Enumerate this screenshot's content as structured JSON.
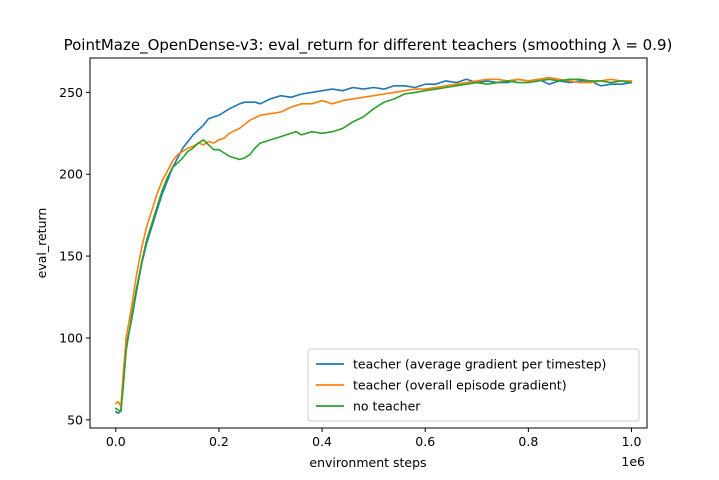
{
  "chart_data": {
    "type": "line",
    "title": "PointMaze_OpenDense-v3: eval_return for different teachers (smoothing λ = 0.9)",
    "xlabel": "environment steps",
    "ylabel": "eval_return",
    "x_multiplier_label": "1e6",
    "xlim": [
      -0.05,
      1.03
    ],
    "ylim": [
      45,
      271
    ],
    "xticks": [
      0.0,
      0.2,
      0.4,
      0.6,
      0.8,
      1.0
    ],
    "xtick_labels": [
      "0.0",
      "0.2",
      "0.4",
      "0.6",
      "0.8",
      "1.0"
    ],
    "yticks": [
      50,
      100,
      150,
      200,
      250
    ],
    "ytick_labels": [
      "50",
      "100",
      "150",
      "200",
      "250"
    ],
    "grid": false,
    "legend_position": "lower-right",
    "series": [
      {
        "name": "teacher (average gradient per timestep)",
        "color": "#1f77b4",
        "x": [
          0.0,
          0.005,
          0.01,
          0.015,
          0.02,
          0.03,
          0.04,
          0.05,
          0.06,
          0.07,
          0.08,
          0.09,
          0.1,
          0.11,
          0.12,
          0.13,
          0.14,
          0.15,
          0.16,
          0.17,
          0.18,
          0.2,
          0.22,
          0.24,
          0.25,
          0.27,
          0.28,
          0.3,
          0.32,
          0.34,
          0.36,
          0.38,
          0.4,
          0.42,
          0.44,
          0.46,
          0.48,
          0.5,
          0.52,
          0.54,
          0.56,
          0.58,
          0.6,
          0.62,
          0.64,
          0.66,
          0.68,
          0.7,
          0.72,
          0.74,
          0.76,
          0.78,
          0.8,
          0.82,
          0.84,
          0.86,
          0.88,
          0.9,
          0.92,
          0.94,
          0.96,
          0.98,
          1.0
        ],
        "y": [
          55,
          54,
          56,
          75,
          95,
          110,
          128,
          145,
          158,
          168,
          178,
          188,
          196,
          204,
          210,
          216,
          220,
          224,
          227,
          230,
          234,
          236,
          240,
          243,
          244,
          244,
          243,
          246,
          248,
          247,
          249,
          250,
          251,
          252,
          251,
          253,
          252,
          253,
          252,
          254,
          254,
          253,
          255,
          255,
          257,
          256,
          258,
          256,
          257,
          256,
          256,
          258,
          257,
          258,
          255,
          257,
          256,
          257,
          257,
          254,
          255,
          255,
          256
        ]
      },
      {
        "name": "teacher (overall episode gradient)",
        "color": "#ff7f0e",
        "x": [
          0.0,
          0.005,
          0.01,
          0.015,
          0.02,
          0.03,
          0.04,
          0.05,
          0.06,
          0.07,
          0.08,
          0.09,
          0.1,
          0.11,
          0.12,
          0.13,
          0.14,
          0.15,
          0.16,
          0.17,
          0.18,
          0.19,
          0.2,
          0.21,
          0.22,
          0.24,
          0.26,
          0.28,
          0.3,
          0.32,
          0.34,
          0.36,
          0.38,
          0.4,
          0.42,
          0.44,
          0.46,
          0.48,
          0.5,
          0.52,
          0.54,
          0.56,
          0.58,
          0.6,
          0.62,
          0.64,
          0.66,
          0.68,
          0.7,
          0.72,
          0.74,
          0.76,
          0.78,
          0.8,
          0.82,
          0.84,
          0.86,
          0.88,
          0.9,
          0.92,
          0.94,
          0.96,
          0.98,
          1.0
        ],
        "y": [
          60,
          61,
          58,
          80,
          100,
          118,
          138,
          155,
          168,
          178,
          188,
          196,
          202,
          208,
          212,
          214,
          216,
          217,
          219,
          218,
          220,
          219,
          221,
          222,
          225,
          228,
          233,
          236,
          237,
          238,
          241,
          243,
          243,
          245,
          243,
          245,
          246,
          247,
          248,
          249,
          250,
          251,
          252,
          252,
          253,
          254,
          255,
          256,
          257,
          258,
          258,
          257,
          258,
          257,
          258,
          259,
          258,
          257,
          256,
          256,
          257,
          258,
          257,
          257
        ]
      },
      {
        "name": "no teacher",
        "color": "#2ca02c",
        "x": [
          0.0,
          0.005,
          0.01,
          0.015,
          0.02,
          0.03,
          0.04,
          0.05,
          0.06,
          0.07,
          0.08,
          0.09,
          0.1,
          0.11,
          0.12,
          0.13,
          0.14,
          0.15,
          0.16,
          0.17,
          0.18,
          0.19,
          0.2,
          0.21,
          0.22,
          0.23,
          0.24,
          0.25,
          0.26,
          0.27,
          0.28,
          0.29,
          0.3,
          0.32,
          0.34,
          0.35,
          0.36,
          0.38,
          0.4,
          0.42,
          0.44,
          0.46,
          0.48,
          0.5,
          0.52,
          0.54,
          0.56,
          0.58,
          0.6,
          0.62,
          0.64,
          0.66,
          0.68,
          0.7,
          0.72,
          0.74,
          0.76,
          0.78,
          0.8,
          0.82,
          0.84,
          0.86,
          0.88,
          0.9,
          0.92,
          0.94,
          0.96,
          0.98,
          1.0
        ],
        "y": [
          57,
          56,
          55,
          72,
          92,
          112,
          130,
          146,
          160,
          170,
          180,
          190,
          198,
          204,
          207,
          210,
          214,
          216,
          219,
          221,
          218,
          215,
          215,
          213,
          211,
          210,
          209,
          210,
          212,
          216,
          219,
          220,
          221,
          223,
          225,
          226,
          224,
          226,
          225,
          226,
          228,
          232,
          235,
          240,
          244,
          246,
          249,
          250,
          251,
          252,
          253,
          254,
          255,
          256,
          255,
          256,
          257,
          256,
          256,
          257,
          258,
          257,
          258,
          258,
          257,
          257,
          256,
          257,
          256
        ]
      }
    ]
  }
}
